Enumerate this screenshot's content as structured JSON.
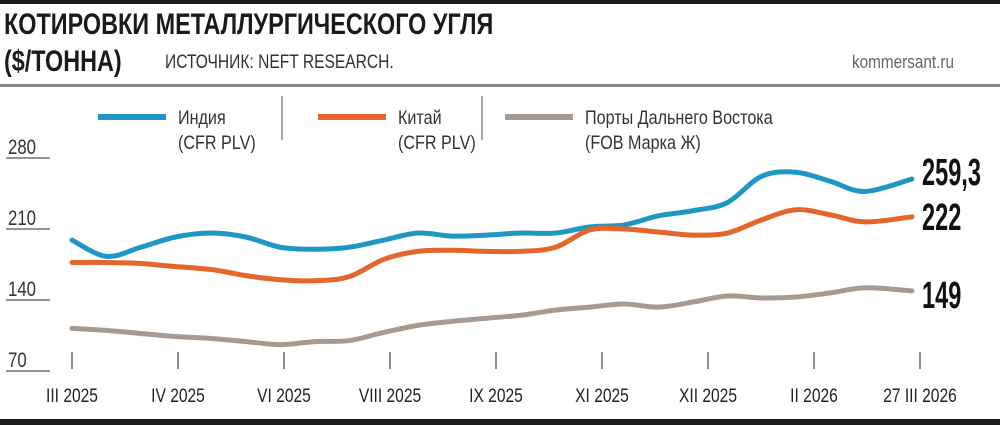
{
  "header": {
    "title": "КОТИРОВКИ МЕТАЛЛУРГИЧЕСКОГО УГЛЯ",
    "unit": "($/ТОННА)",
    "source": "ИСТОЧНИК: NEFT RESEARCH.",
    "site": "kommersant.ru"
  },
  "chart_data": {
    "type": "line",
    "title": "КОТИРОВКИ МЕТАЛЛУРГИЧЕСКОГО УГЛЯ",
    "ylabel": "$/тонна",
    "ylim": [
      70,
      280
    ],
    "yticks": [
      "280",
      "210",
      "140",
      "70"
    ],
    "xticks": [
      "III 2025",
      "IV 2025",
      "VI 2025",
      "VIII 2025",
      "IX 2025",
      "XI 2025",
      "XII 2025",
      "II 2026",
      "27 III 2026"
    ],
    "grid": false,
    "legend": "top",
    "x": [
      "2025-03-01",
      "2025-03-17",
      "2025-04-02",
      "2025-04-18",
      "2025-05-05",
      "2025-05-21",
      "2025-06-06",
      "2025-06-22",
      "2025-07-08",
      "2025-07-24",
      "2025-08-09",
      "2025-08-25",
      "2025-09-10",
      "2025-09-26",
      "2025-10-12",
      "2025-10-28",
      "2025-11-13",
      "2025-11-29",
      "2025-12-15",
      "2025-12-31",
      "2026-01-16",
      "2026-02-01",
      "2026-02-17",
      "2026-03-05",
      "2026-03-27"
    ],
    "series": [
      {
        "name": "Индия",
        "name2": "(CFR PLV)",
        "color": "#1f97c4",
        "end_label": "259,3",
        "values": [
          199,
          183,
          192,
          202,
          206,
          202,
          192,
          190,
          192,
          199,
          206,
          203,
          204,
          206,
          206,
          212,
          214,
          223,
          228,
          236,
          262,
          266,
          257,
          247,
          259.3
        ]
      },
      {
        "name": "Китай",
        "name2": "(CFR PLV)",
        "color": "#e5662a",
        "end_label": "222",
        "values": [
          177,
          177,
          176,
          173,
          170,
          164,
          160,
          159,
          163,
          180,
          188,
          189,
          188,
          188,
          192,
          209,
          210,
          207,
          204,
          206,
          219,
          229,
          224,
          217,
          222
        ]
      },
      {
        "name": "Порты Дальнего Востока",
        "name2": "(FOB Марка Ж)",
        "color": "#a89a90",
        "end_label": "149",
        "values": [
          112,
          110,
          107,
          104,
          102,
          99,
          96,
          99,
          100,
          108,
          115,
          119,
          122,
          125,
          130,
          133,
          136,
          133,
          138,
          144,
          142,
          143,
          147,
          152,
          149
        ]
      }
    ]
  }
}
